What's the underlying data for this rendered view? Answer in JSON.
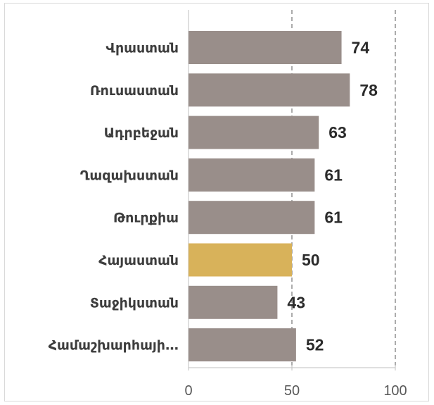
{
  "chart_data": {
    "type": "bar",
    "orientation": "horizontal",
    "categories": [
      "Վրաստան",
      "Ռուսաստան",
      "Ադրբեջան",
      "Ղազախստան",
      "Թուրքիա",
      "Հայաստան",
      "Տաջիկստան",
      "Համաշխարհայի…"
    ],
    "values": [
      74,
      78,
      63,
      61,
      61,
      50,
      43,
      52
    ],
    "value_labels": [
      "74",
      "78",
      "63",
      "61",
      "61",
      "50",
      "43",
      "52"
    ],
    "highlight_category": "Հայաստան",
    "xlim": [
      0,
      100
    ],
    "xticks": [
      "0",
      "50",
      "100"
    ],
    "grid": "vertical dashed",
    "colors": {
      "bar": "#998e8a",
      "highlight": "#d8b25a",
      "grid": "#7f7f7f",
      "axis": "#bfbfbf"
    }
  }
}
